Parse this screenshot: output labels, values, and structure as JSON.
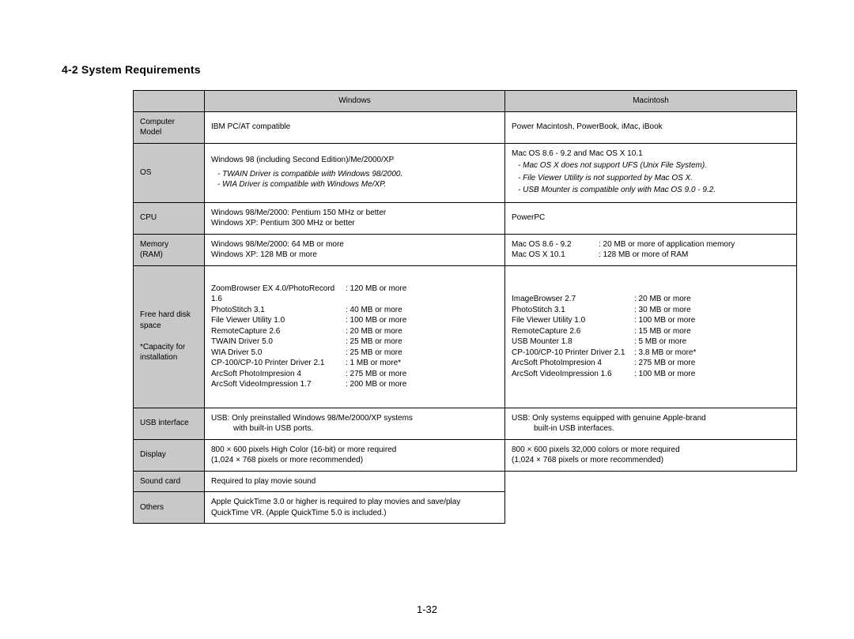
{
  "section_title": "4-2 System Requirements",
  "page_number": "1-32",
  "headers": {
    "blank": "",
    "windows": "Windows",
    "mac": "Macintosh"
  },
  "rows": {
    "computer_model": {
      "label": "Computer Model",
      "win": "IBM PC/AT compatible",
      "mac": "Power Macintosh, PowerBook, iMac, iBook"
    },
    "os": {
      "label": "OS",
      "win_main": "Windows 98 (including Second Edition)/Me/2000/XP",
      "win_note1": "- TWAIN Driver is compatible with Windows 98/2000.",
      "win_note2": "- WIA Driver is compatible with Windows Me/XP.",
      "mac_main": "Mac OS 8.6 - 9.2 and Mac OS X 10.1",
      "mac_note1": "- Mac OS X does not support UFS (Unix File System).",
      "mac_note2": "- File Viewer Utility is not supported by Mac OS X.",
      "mac_note3": "- USB Mounter is compatible only with Mac OS 9.0 - 9.2."
    },
    "cpu": {
      "label": "CPU",
      "win1": "Windows 98/Me/2000: Pentium 150 MHz or better",
      "win2": "Windows XP: Pentium 300 MHz or better",
      "mac": "PowerPC"
    },
    "memory": {
      "label1": "Memory",
      "label2": "(RAM)",
      "win1": "Windows 98/Me/2000: 64 MB or more",
      "win2": "Windows XP: 128 MB or more",
      "mac1a": "Mac OS 8.6 - 9.2",
      "mac1b": ": 20 MB or more of application memory",
      "mac2a": "Mac OS X 10.1",
      "mac2b": ": 128 MB or more of RAM"
    },
    "disk": {
      "label1": "Free hard disk",
      "label2": "space",
      "label3": "*Capacity for",
      "label4": "installation",
      "win": [
        {
          "n": "ZoomBrowser EX 4.0/PhotoRecord 1.6",
          "v": ": 120 MB or more"
        },
        {
          "n": "PhotoStitch 3.1",
          "v": ": 40 MB or more"
        },
        {
          "n": "File Viewer Utility 1.0",
          "v": ": 100 MB or more"
        },
        {
          "n": "RemoteCapture 2.6",
          "v": ": 20 MB or more"
        },
        {
          "n": "TWAIN Driver 5.0",
          "v": ": 25 MB or more"
        },
        {
          "n": "WIA Driver 5.0",
          "v": ": 25 MB or more"
        },
        {
          "n": "CP-100/CP-10 Printer Driver 2.1",
          "v": ": 1 MB or more*"
        },
        {
          "n": "ArcSoft PhotoImpresion 4",
          "v": ": 275 MB or more"
        },
        {
          "n": "ArcSoft VideoImpression 1.7",
          "v": ": 200 MB or more"
        }
      ],
      "mac": [
        {
          "n": "ImageBrowser 2.7",
          "v": ": 20 MB or more"
        },
        {
          "n": "PhotoStitch 3.1",
          "v": ": 30 MB or more"
        },
        {
          "n": "File Viewer Utility 1.0",
          "v": ": 100 MB or more"
        },
        {
          "n": "RemoteCapture 2.6",
          "v": ": 15 MB or more"
        },
        {
          "n": "USB Mounter 1.8",
          "v": ": 5 MB or more"
        },
        {
          "n": "CP-100/CP-10 Printer Driver 2.1",
          "v": ": 3.8 MB or more*"
        },
        {
          "n": "ArcSoft PhotoImpresion 4",
          "v": ": 275 MB or more"
        },
        {
          "n": "ArcSoft VideoImpression 1.6",
          "v": ": 100 MB or more"
        }
      ]
    },
    "usb": {
      "label": "USB interface",
      "win1": "USB: Only preinstalled Windows 98/Me/2000/XP systems",
      "win2": "with built-in USB ports.",
      "mac1": "USB: Only systems equipped with genuine Apple-brand",
      "mac2": "built-in USB interfaces."
    },
    "display": {
      "label": "Display",
      "win1": "800 × 600 pixels High Color (16-bit) or more required",
      "win2": "(1,024 × 768 pixels or more recommended)",
      "mac1": "800 × 600 pixels 32,000 colors or more required",
      "mac2": "(1,024 × 768 pixels or more recommended)"
    },
    "sound": {
      "label": "Sound card",
      "win": "Required to play movie sound"
    },
    "others": {
      "label": "Others",
      "win1": "Apple QuickTime 3.0 or higher is required to play movies and save/play",
      "win2": "QuickTime VR. (Apple QuickTime 5.0 is included.)"
    }
  }
}
